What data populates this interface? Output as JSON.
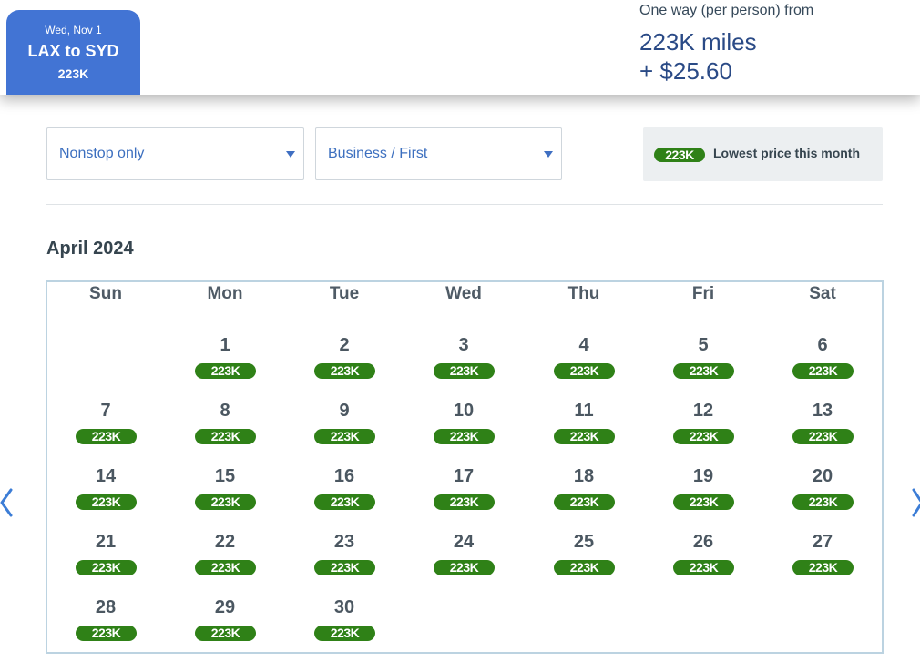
{
  "trip": {
    "date": "Wed, Nov 1",
    "route": "LAX to SYD",
    "price": "223K"
  },
  "fare": {
    "caption": "One way (per person) from",
    "miles": "223K miles",
    "tax": "+ $25.60"
  },
  "filters": {
    "stops": "Nonstop only",
    "cabin": "Business / First"
  },
  "lowest": {
    "badge": "223K",
    "label": "Lowest price this month"
  },
  "calendar": {
    "month": "April 2024",
    "weekdays": [
      "Sun",
      "Mon",
      "Tue",
      "Wed",
      "Thu",
      "Fri",
      "Sat"
    ],
    "start_weekday": 1,
    "days": [
      {
        "day": "1",
        "price": "223K"
      },
      {
        "day": "2",
        "price": "223K"
      },
      {
        "day": "3",
        "price": "223K"
      },
      {
        "day": "4",
        "price": "223K"
      },
      {
        "day": "5",
        "price": "223K"
      },
      {
        "day": "6",
        "price": "223K"
      },
      {
        "day": "7",
        "price": "223K"
      },
      {
        "day": "8",
        "price": "223K"
      },
      {
        "day": "9",
        "price": "223K"
      },
      {
        "day": "10",
        "price": "223K"
      },
      {
        "day": "11",
        "price": "223K"
      },
      {
        "day": "12",
        "price": "223K"
      },
      {
        "day": "13",
        "price": "223K"
      },
      {
        "day": "14",
        "price": "223K"
      },
      {
        "day": "15",
        "price": "223K"
      },
      {
        "day": "16",
        "price": "223K"
      },
      {
        "day": "17",
        "price": "223K"
      },
      {
        "day": "18",
        "price": "223K"
      },
      {
        "day": "19",
        "price": "223K"
      },
      {
        "day": "20",
        "price": "223K"
      },
      {
        "day": "21",
        "price": "223K"
      },
      {
        "day": "22",
        "price": "223K"
      },
      {
        "day": "23",
        "price": "223K"
      },
      {
        "day": "24",
        "price": "223K"
      },
      {
        "day": "25",
        "price": "223K"
      },
      {
        "day": "26",
        "price": "223K"
      },
      {
        "day": "27",
        "price": "223K"
      },
      {
        "day": "28",
        "price": "223K"
      },
      {
        "day": "29",
        "price": "223K"
      },
      {
        "day": "30",
        "price": "223K"
      }
    ]
  },
  "icons": {
    "prev": "chevron-left-icon",
    "next": "chevron-right-icon",
    "dropdown": "caret-down-icon"
  },
  "colors": {
    "accent": "#4274d4",
    "price_badge": "#2f8117",
    "link": "#3c6fbf",
    "miles_text": "#2a4a86"
  }
}
